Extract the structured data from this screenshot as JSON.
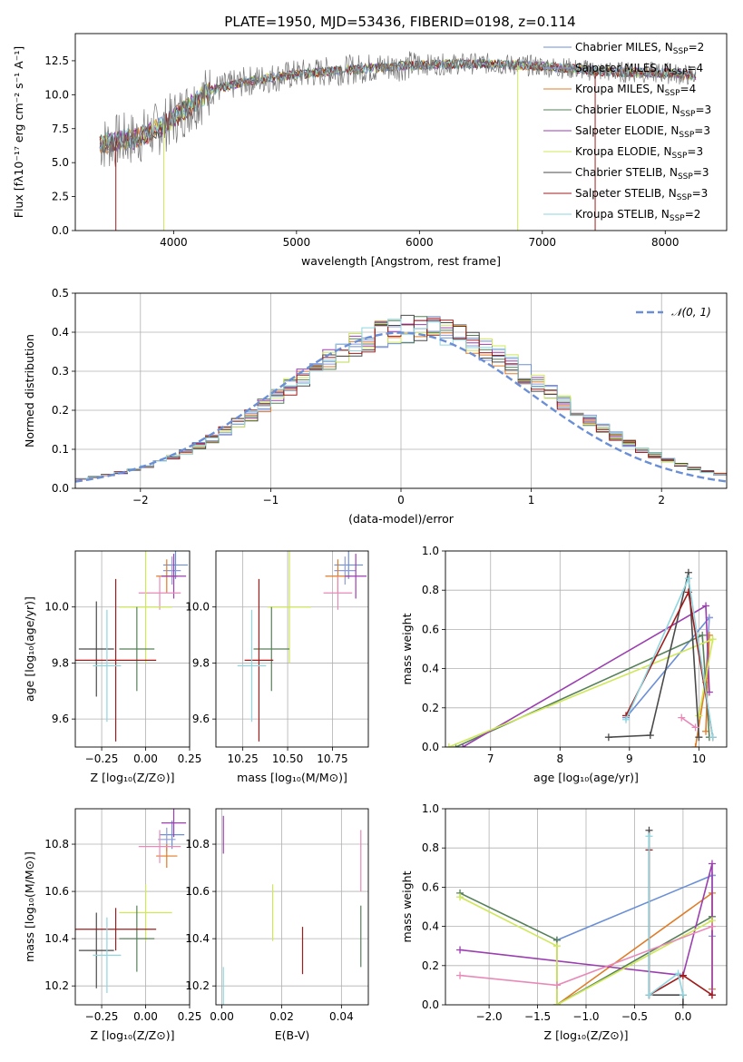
{
  "title": "PLATE=1950, MJD=53436, FIBERID=0198, z=0.114",
  "colors": [
    "#6b8fd6",
    "#8e9bd6",
    "#e07c28",
    "#57805a",
    "#9b3fb0",
    "#cfe85a",
    "#4a4a4a",
    "#a01c1c",
    "#8fd6e0",
    "#e78ab8"
  ],
  "chart_data": [
    {
      "type": "line",
      "title": "PLATE=1950, MJD=53436, FIBERID=0198, z=0.114",
      "xlabel": "wavelength [Angstrom, rest frame]",
      "ylabel": "Flux [fλ10⁻¹⁷ erg cm⁻² s⁻¹ A⁻¹]",
      "xlim": [
        3200,
        8500
      ],
      "ylim": [
        0,
        14.5
      ],
      "xticks": [
        4000,
        5000,
        6000,
        7000,
        8000
      ],
      "yticks": [
        0.0,
        2.5,
        5.0,
        7.5,
        10.0,
        12.5
      ],
      "legend_position": "top-right",
      "continuum": [
        [
          3400,
          6.4
        ],
        [
          3700,
          6.8
        ],
        [
          3900,
          7.6
        ],
        [
          4050,
          8.6
        ],
        [
          4300,
          10.3
        ],
        [
          4600,
          11.0
        ],
        [
          5000,
          11.5
        ],
        [
          5500,
          11.9
        ],
        [
          6000,
          12.2
        ],
        [
          6500,
          12.3
        ],
        [
          7000,
          12.1
        ],
        [
          7500,
          11.7
        ],
        [
          8000,
          11.6
        ],
        [
          8250,
          11.4
        ]
      ],
      "series": [
        {
          "name": "Chabrier MILES, N",
          "sub": "SSP",
          "suffix": "=2",
          "color": "#6b8fd6"
        },
        {
          "name": "Salpeter MILES, N",
          "sub": "SSP",
          "suffix": "=4",
          "color": "#8e9bd6"
        },
        {
          "name": "Kroupa MILES, N",
          "sub": "SSP",
          "suffix": "=4",
          "color": "#e07c28"
        },
        {
          "name": "Chabrier ELODIE, N",
          "sub": "SSP",
          "suffix": "=3",
          "color": "#57805a"
        },
        {
          "name": "Salpeter ELODIE, N",
          "sub": "SSP",
          "suffix": "=3",
          "color": "#9b3fb0"
        },
        {
          "name": "Kroupa ELODIE, N",
          "sub": "SSP",
          "suffix": "=3",
          "color": "#cfe85a"
        },
        {
          "name": "Chabrier STELIB, N",
          "sub": "SSP",
          "suffix": "=3",
          "color": "#4a4a4a"
        },
        {
          "name": "Salpeter STELIB, N",
          "sub": "SSP",
          "suffix": "=3",
          "color": "#a01c1c"
        },
        {
          "name": "Kroupa STELIB, N",
          "sub": "SSP",
          "suffix": "=2",
          "color": "#8fd6e0"
        }
      ]
    },
    {
      "type": "line",
      "xlabel": "(data-model)/error",
      "ylabel": "Normed distribution",
      "xlim": [
        -2.5,
        2.5
      ],
      "ylim": [
        0,
        0.5
      ],
      "xticks": [
        -2,
        -1,
        0,
        1,
        2
      ],
      "xtick_labels": [
        "−2",
        "−1",
        "0",
        "1",
        "2"
      ],
      "yticks": [
        0.0,
        0.1,
        0.2,
        0.3,
        0.4,
        0.5
      ],
      "bin_width": 0.1,
      "gaussian_label": "𝒩(0, 1)",
      "gaussian_color": "#6b8fd6",
      "legend_position": "top-right"
    },
    {
      "type": "scatter",
      "xlabel": "Z [log₁₀(Z/Z⊙)]",
      "ylabel": "age  [log₁₀(age/yr)]",
      "xlim": [
        -0.4,
        0.25
      ],
      "ylim": [
        9.5,
        10.2
      ],
      "xticks": [
        -0.25,
        0.0,
        0.25
      ],
      "yticks": [
        9.6,
        9.8,
        10.0
      ],
      "points": [
        {
          "x": 0.17,
          "y": 10.15,
          "xerr": 0.07,
          "yerr": 0.05,
          "color": "#6b8fd6"
        },
        {
          "x": 0.15,
          "y": 10.13,
          "xerr": 0.05,
          "yerr": 0.05,
          "color": "#8e9bd6"
        },
        {
          "x": 0.12,
          "y": 10.11,
          "xerr": 0.06,
          "yerr": 0.06,
          "color": "#e07c28"
        },
        {
          "x": 0.16,
          "y": 10.11,
          "xerr": 0.07,
          "yerr": 0.08,
          "color": "#9b3fb0"
        },
        {
          "x": 0.08,
          "y": 10.05,
          "xerr": 0.12,
          "yerr": 0.06,
          "color": "#e78ab8"
        },
        {
          "x": 0.0,
          "y": 10.0,
          "xerr": 0.15,
          "yerr": 0.2,
          "color": "#cfe85a"
        },
        {
          "x": -0.05,
          "y": 9.85,
          "xerr": 0.1,
          "yerr": 0.15,
          "color": "#57805a"
        },
        {
          "x": -0.28,
          "y": 9.85,
          "xerr": 0.1,
          "yerr": 0.17,
          "color": "#4a4a4a"
        },
        {
          "x": -0.17,
          "y": 9.81,
          "xerr": 0.23,
          "yerr": 0.29,
          "color": "#a01c1c"
        },
        {
          "x": -0.22,
          "y": 9.79,
          "xerr": 0.08,
          "yerr": 0.2,
          "color": "#8fd6e0"
        }
      ]
    },
    {
      "type": "scatter",
      "xlabel": "mass [log₁₀(M/M⊙)]",
      "xlim": [
        10.1,
        10.95
      ],
      "ylim": [
        9.5,
        10.2
      ],
      "xticks": [
        10.25,
        10.5,
        10.75
      ],
      "yticks": [
        9.6,
        9.8,
        10.0
      ],
      "points": [
        {
          "x": 10.84,
          "y": 10.15,
          "xerr": 0.08,
          "yerr": 0.05,
          "color": "#6b8fd6"
        },
        {
          "x": 10.82,
          "y": 10.13,
          "xerr": 0.06,
          "yerr": 0.05,
          "color": "#8e9bd6"
        },
        {
          "x": 10.78,
          "y": 10.11,
          "xerr": 0.07,
          "yerr": 0.06,
          "color": "#e07c28"
        },
        {
          "x": 10.88,
          "y": 10.11,
          "xerr": 0.06,
          "yerr": 0.08,
          "color": "#9b3fb0"
        },
        {
          "x": 10.78,
          "y": 10.05,
          "xerr": 0.08,
          "yerr": 0.06,
          "color": "#e78ab8"
        },
        {
          "x": 10.51,
          "y": 10.0,
          "xerr": 0.12,
          "yerr": 0.2,
          "color": "#cfe85a"
        },
        {
          "x": 10.41,
          "y": 9.85,
          "xerr": 0.1,
          "yerr": 0.15,
          "color": "#57805a"
        },
        {
          "x": 10.34,
          "y": 9.81,
          "xerr": 0.08,
          "yerr": 0.29,
          "color": "#a01c1c"
        },
        {
          "x": 10.3,
          "y": 9.79,
          "xerr": 0.08,
          "yerr": 0.2,
          "color": "#8fd6e0"
        }
      ]
    },
    {
      "type": "line",
      "xlabel": "age  [log₁₀(age/yr)]",
      "ylabel": "mass weight",
      "xlim": [
        6.35,
        10.4
      ],
      "ylim": [
        0,
        1
      ],
      "xticks": [
        7,
        8,
        9,
        10
      ],
      "yticks": [
        0.0,
        0.2,
        0.4,
        0.6,
        0.8,
        1.0
      ],
      "series": [
        {
          "color": "#6b8fd6",
          "points": [
            [
              8.95,
              0.15
            ],
            [
              10.15,
              0.66
            ]
          ]
        },
        {
          "color": "#8e9bd6",
          "points": [
            [
              10.1,
              0.35
            ],
            [
              10.15,
              0.66
            ]
          ]
        },
        {
          "color": "#e07c28",
          "points": [
            [
              9.95,
              0.0
            ],
            [
              10.1,
              0.33
            ],
            [
              10.15,
              0.57
            ],
            [
              10.1,
              0.08
            ]
          ]
        },
        {
          "color": "#57805a",
          "points": [
            [
              6.5,
              0.0
            ],
            [
              10.05,
              0.57
            ],
            [
              10.15,
              0.05
            ]
          ]
        },
        {
          "color": "#9b3fb0",
          "points": [
            [
              6.6,
              0.0
            ],
            [
              10.1,
              0.72
            ],
            [
              10.15,
              0.28
            ]
          ]
        },
        {
          "color": "#cfe85a",
          "points": [
            [
              6.4,
              0.0
            ],
            [
              10.2,
              0.55
            ],
            [
              10.0,
              0.16
            ]
          ]
        },
        {
          "color": "#4a4a4a",
          "points": [
            [
              8.7,
              0.05
            ],
            [
              9.3,
              0.06
            ],
            [
              9.85,
              0.89
            ],
            [
              10.0,
              0.05
            ]
          ]
        },
        {
          "color": "#a01c1c",
          "points": [
            [
              8.95,
              0.16
            ],
            [
              9.85,
              0.79
            ],
            [
              10.2,
              0.05
            ]
          ]
        },
        {
          "color": "#8fd6e0",
          "points": [
            [
              8.95,
              0.14
            ],
            [
              9.85,
              0.86
            ],
            [
              10.2,
              0.05
            ]
          ]
        },
        {
          "color": "#e78ab8",
          "points": [
            [
              9.75,
              0.15
            ],
            [
              9.95,
              0.1
            ]
          ]
        }
      ]
    },
    {
      "type": "scatter",
      "xlabel": "Z [log₁₀(Z/Z⊙)]",
      "ylabel": "mass [log₁₀(M/M⊙)]",
      "xlim": [
        -0.4,
        0.25
      ],
      "ylim": [
        10.12,
        10.95
      ],
      "xticks": [
        -0.25,
        0.0,
        0.25
      ],
      "yticks": [
        10.2,
        10.4,
        10.6,
        10.8
      ],
      "points": [
        {
          "x": 0.15,
          "y": 10.84,
          "xerr": 0.07,
          "yerr": 0.06,
          "color": "#6b8fd6"
        },
        {
          "x": 0.12,
          "y": 10.82,
          "xerr": 0.05,
          "yerr": 0.05,
          "color": "#8e9bd6"
        },
        {
          "x": 0.12,
          "y": 10.75,
          "xerr": 0.06,
          "yerr": 0.05,
          "color": "#e07c28"
        },
        {
          "x": 0.16,
          "y": 10.89,
          "xerr": 0.07,
          "yerr": 0.06,
          "color": "#9b3fb0"
        },
        {
          "x": 0.08,
          "y": 10.79,
          "xerr": 0.12,
          "yerr": 0.07,
          "color": "#e78ab8"
        },
        {
          "x": 0.0,
          "y": 10.51,
          "xerr": 0.15,
          "yerr": 0.12,
          "color": "#cfe85a"
        },
        {
          "x": -0.05,
          "y": 10.4,
          "xerr": 0.1,
          "yerr": 0.14,
          "color": "#57805a"
        },
        {
          "x": -0.28,
          "y": 10.35,
          "xerr": 0.1,
          "yerr": 0.16,
          "color": "#4a4a4a"
        },
        {
          "x": -0.17,
          "y": 10.44,
          "xerr": 0.23,
          "yerr": 0.09,
          "color": "#a01c1c"
        },
        {
          "x": -0.22,
          "y": 10.33,
          "xerr": 0.08,
          "yerr": 0.16,
          "color": "#8fd6e0"
        }
      ]
    },
    {
      "type": "scatter",
      "xlabel": "E(B-V)",
      "xlim": [
        -0.002,
        0.049
      ],
      "ylim": [
        10.12,
        10.95
      ],
      "xticks": [
        0.0,
        0.02,
        0.04
      ],
      "xtick_labels": [
        "0.00",
        "0.02",
        "0.04"
      ],
      "yticks": [
        10.2,
        10.4,
        10.6,
        10.8
      ],
      "points": [
        {
          "x": 0.0005,
          "y": 10.84,
          "xerr": 0,
          "yerr": 0.08,
          "color": "#9b3fb0"
        },
        {
          "x": 0.0005,
          "y": 10.2,
          "xerr": 0,
          "yerr": 0.08,
          "color": "#8fd6e0"
        },
        {
          "x": 0.017,
          "y": 10.51,
          "xerr": 0,
          "yerr": 0.12,
          "color": "#cfe85a"
        },
        {
          "x": 0.027,
          "y": 10.35,
          "xerr": 0,
          "yerr": 0.1,
          "color": "#a01c1c"
        },
        {
          "x": 0.0465,
          "y": 10.73,
          "xerr": 0,
          "yerr": 0.13,
          "color": "#e78ab8"
        },
        {
          "x": 0.0465,
          "y": 10.41,
          "xerr": 0,
          "yerr": 0.13,
          "color": "#57805a"
        }
      ]
    },
    {
      "type": "line",
      "xlabel": "Z [log₁₀(Z/Z⊙)]",
      "ylabel": "mass weight",
      "xlim": [
        -2.45,
        0.45
      ],
      "ylim": [
        0,
        1
      ],
      "xticks": [
        -2.0,
        -1.5,
        -1.0,
        -0.5,
        0.0
      ],
      "xtick_labels": [
        "−2.0",
        "−1.5",
        "−1.0",
        "−0.5",
        "0.0"
      ],
      "yticks": [
        0.0,
        0.2,
        0.4,
        0.6,
        0.8,
        1.0
      ],
      "series": [
        {
          "color": "#6b8fd6",
          "points": [
            [
              -1.3,
              0.33
            ],
            [
              0.3,
              0.66
            ]
          ]
        },
        {
          "color": "#8e9bd6",
          "points": [
            [
              0.3,
              0.35
            ],
            [
              0.3,
              0.66
            ]
          ]
        },
        {
          "color": "#e07c28",
          "points": [
            [
              -1.3,
              0.0
            ],
            [
              0.3,
              0.57
            ],
            [
              0.3,
              0.08
            ]
          ]
        },
        {
          "color": "#57805a",
          "points": [
            [
              -2.3,
              0.57
            ],
            [
              -1.3,
              0.33
            ],
            [
              -1.3,
              0.0
            ],
            [
              0.3,
              0.45
            ]
          ]
        },
        {
          "color": "#9b3fb0",
          "points": [
            [
              -2.3,
              0.28
            ],
            [
              0.0,
              0.15
            ],
            [
              0.3,
              0.72
            ],
            [
              0.3,
              0.05
            ]
          ]
        },
        {
          "color": "#cfe85a",
          "points": [
            [
              -2.3,
              0.55
            ],
            [
              -1.3,
              0.3
            ],
            [
              -1.3,
              0.0
            ],
            [
              0.3,
              0.43
            ]
          ]
        },
        {
          "color": "#4a4a4a",
          "points": [
            [
              -0.35,
              0.89
            ],
            [
              -0.35,
              0.05
            ],
            [
              0.0,
              0.05
            ],
            [
              0.0,
              0.0
            ]
          ]
        },
        {
          "color": "#a01c1c",
          "points": [
            [
              -0.35,
              0.79
            ],
            [
              -0.35,
              0.05
            ],
            [
              0.0,
              0.15
            ],
            [
              0.3,
              0.05
            ]
          ]
        },
        {
          "color": "#8fd6e0",
          "points": [
            [
              -0.35,
              0.86
            ],
            [
              -0.35,
              0.05
            ],
            [
              -0.05,
              0.16
            ],
            [
              0.0,
              0.05
            ]
          ]
        },
        {
          "color": "#e78ab8",
          "points": [
            [
              -2.3,
              0.15
            ],
            [
              -1.3,
              0.1
            ],
            [
              0.3,
              0.4
            ]
          ]
        }
      ]
    }
  ]
}
